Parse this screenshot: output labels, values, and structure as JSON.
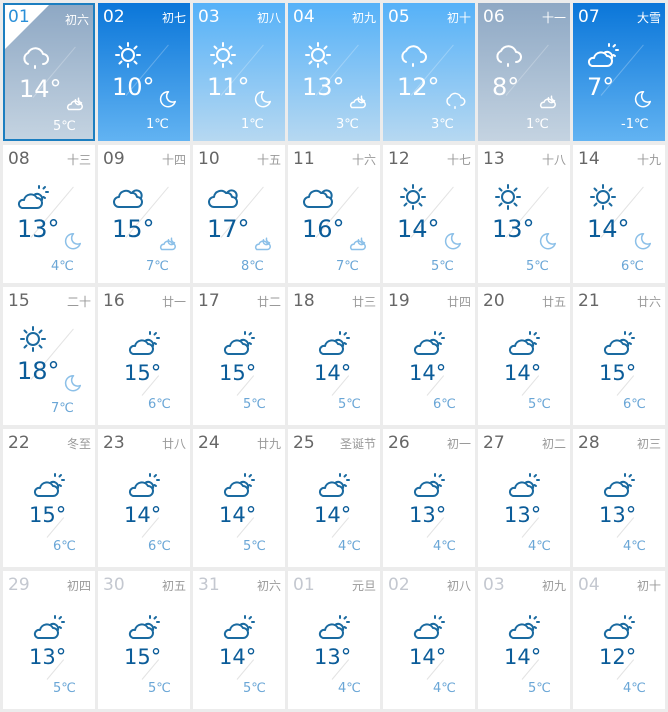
{
  "colors": {
    "temp": "#0b5c99",
    "low": "#6aa6d6",
    "icon_day": "#1a6aa0",
    "icon_night": "#8cc0e8",
    "selected_border": "#1c7ec0"
  },
  "days": [
    {
      "date": "01",
      "lunar": "初六",
      "day_icon": "cloud-rain",
      "high": "14°",
      "night_icon": "cloud-moon",
      "low": "5℃",
      "bg": "grey",
      "selected": true
    },
    {
      "date": "02",
      "lunar": "初七",
      "day_icon": "sun",
      "high": "10°",
      "night_icon": "moon",
      "low": "1℃",
      "bg": "dark"
    },
    {
      "date": "03",
      "lunar": "初八",
      "day_icon": "sun",
      "high": "11°",
      "night_icon": "moon",
      "low": "1℃",
      "bg": "light"
    },
    {
      "date": "04",
      "lunar": "初九",
      "day_icon": "sun",
      "high": "13°",
      "night_icon": "cloud-moon",
      "low": "3℃",
      "bg": "light"
    },
    {
      "date": "05",
      "lunar": "初十",
      "day_icon": "cloud-rain",
      "high": "12°",
      "night_icon": "cloud-rain",
      "low": "3℃",
      "bg": "light"
    },
    {
      "date": "06",
      "lunar": "十一",
      "day_icon": "cloud-rain",
      "high": "8°",
      "night_icon": "cloud-moon",
      "low": "1℃",
      "bg": "grey"
    },
    {
      "date": "07",
      "lunar": "大雪",
      "day_icon": "cloud-sun",
      "high": "7°",
      "night_icon": "moon",
      "low": "-1℃",
      "bg": "dark"
    },
    {
      "date": "08",
      "lunar": "十三",
      "day_icon": "cloud-sun",
      "high": "13°",
      "night_icon": "moon",
      "low": "4℃"
    },
    {
      "date": "09",
      "lunar": "十四",
      "day_icon": "cloud",
      "high": "15°",
      "night_icon": "cloud-moon",
      "low": "7℃"
    },
    {
      "date": "10",
      "lunar": "十五",
      "day_icon": "cloud",
      "high": "17°",
      "night_icon": "cloud-moon",
      "low": "8℃"
    },
    {
      "date": "11",
      "lunar": "十六",
      "day_icon": "cloud",
      "high": "16°",
      "night_icon": "cloud-moon",
      "low": "7℃"
    },
    {
      "date": "12",
      "lunar": "十七",
      "day_icon": "sun",
      "high": "14°",
      "night_icon": "moon",
      "low": "5℃"
    },
    {
      "date": "13",
      "lunar": "十八",
      "day_icon": "sun",
      "high": "13°",
      "night_icon": "moon",
      "low": "5℃"
    },
    {
      "date": "14",
      "lunar": "十九",
      "day_icon": "sun",
      "high": "14°",
      "night_icon": "moon",
      "low": "6℃"
    },
    {
      "date": "15",
      "lunar": "二十",
      "day_icon": "sun",
      "high": "18°",
      "night_icon": "moon",
      "low": "7℃"
    },
    {
      "date": "16",
      "lunar": "廿一",
      "day_icon": "cloud-sun",
      "high": "15°",
      "low": "6℃"
    },
    {
      "date": "17",
      "lunar": "廿二",
      "day_icon": "cloud-sun",
      "high": "15°",
      "low": "5℃"
    },
    {
      "date": "18",
      "lunar": "廿三",
      "day_icon": "cloud-sun",
      "high": "14°",
      "low": "5℃"
    },
    {
      "date": "19",
      "lunar": "廿四",
      "day_icon": "cloud-sun",
      "high": "14°",
      "low": "6℃"
    },
    {
      "date": "20",
      "lunar": "廿五",
      "day_icon": "cloud-sun",
      "high": "14°",
      "low": "5℃"
    },
    {
      "date": "21",
      "lunar": "廿六",
      "day_icon": "cloud-sun",
      "high": "15°",
      "low": "6℃"
    },
    {
      "date": "22",
      "lunar": "冬至",
      "day_icon": "cloud-sun",
      "high": "15°",
      "low": "6℃"
    },
    {
      "date": "23",
      "lunar": "廿八",
      "day_icon": "cloud-sun",
      "high": "14°",
      "low": "6℃"
    },
    {
      "date": "24",
      "lunar": "廿九",
      "day_icon": "cloud-sun",
      "high": "14°",
      "low": "5℃"
    },
    {
      "date": "25",
      "lunar": "圣诞节",
      "day_icon": "cloud-sun",
      "high": "14°",
      "low": "4℃"
    },
    {
      "date": "26",
      "lunar": "初一",
      "day_icon": "cloud-sun",
      "high": "13°",
      "low": "4℃"
    },
    {
      "date": "27",
      "lunar": "初二",
      "day_icon": "cloud-sun",
      "high": "13°",
      "low": "4℃"
    },
    {
      "date": "28",
      "lunar": "初三",
      "day_icon": "cloud-sun",
      "high": "13°",
      "low": "4℃"
    },
    {
      "date": "29",
      "lunar": "初四",
      "day_icon": "cloud-sun",
      "high": "13°",
      "low": "5℃",
      "muted": true
    },
    {
      "date": "30",
      "lunar": "初五",
      "day_icon": "cloud-sun",
      "high": "15°",
      "low": "5℃",
      "muted": true
    },
    {
      "date": "31",
      "lunar": "初六",
      "day_icon": "cloud-sun",
      "high": "14°",
      "low": "5℃",
      "muted": true
    },
    {
      "date": "01",
      "lunar": "元旦",
      "day_icon": "cloud-sun",
      "high": "13°",
      "low": "4℃",
      "muted": true
    },
    {
      "date": "02",
      "lunar": "初八",
      "day_icon": "cloud-sun",
      "high": "14°",
      "low": "4℃",
      "muted": true
    },
    {
      "date": "03",
      "lunar": "初九",
      "day_icon": "cloud-sun",
      "high": "14°",
      "low": "5℃",
      "muted": true
    },
    {
      "date": "04",
      "lunar": "初十",
      "day_icon": "cloud-sun",
      "high": "12°",
      "low": "4℃",
      "muted": true
    }
  ]
}
